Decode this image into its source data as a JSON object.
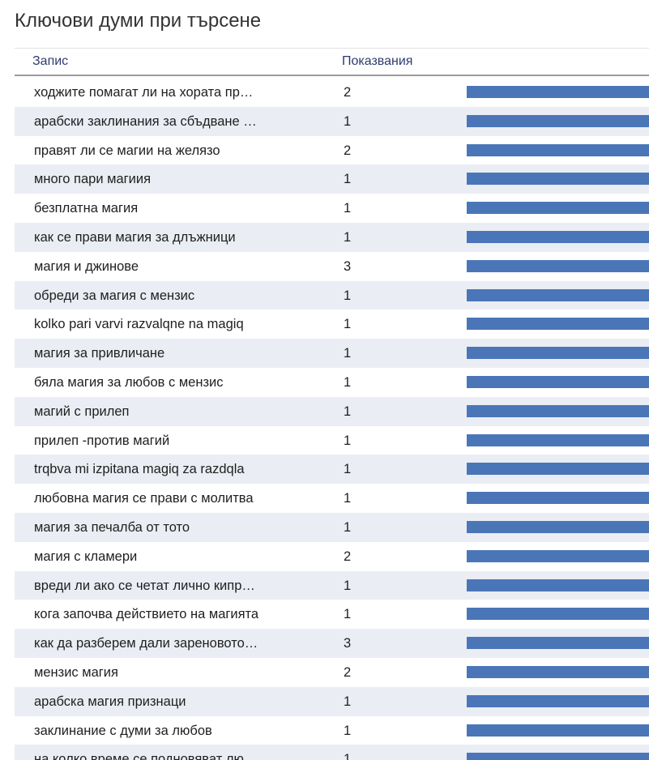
{
  "title": "Ключови думи при търсене",
  "columns": {
    "entry": "Запис",
    "views": "Показвания"
  },
  "colors": {
    "bar": "#4a76b8",
    "alt_row": "#eaedf3"
  },
  "rows": [
    {
      "entry": "ходжите помагат ли на хората пр…",
      "views": "2"
    },
    {
      "entry": "арабски заклинания за сбъдване …",
      "views": "1"
    },
    {
      "entry": "правят ли се магии на желязо",
      "views": "2"
    },
    {
      "entry": "много пари магиия",
      "views": "1"
    },
    {
      "entry": "безплатна магия",
      "views": "1"
    },
    {
      "entry": "как се прави магия за длъжници",
      "views": "1"
    },
    {
      "entry": "магия и джинове",
      "views": "3"
    },
    {
      "entry": "обреди за магия с мензис",
      "views": "1"
    },
    {
      "entry": "kolko pari varvi razvalqne na magiq",
      "views": "1"
    },
    {
      "entry": "магия за привличане",
      "views": "1"
    },
    {
      "entry": "бяла магия за любов с мензис",
      "views": "1"
    },
    {
      "entry": "магий с прилеп",
      "views": "1"
    },
    {
      "entry": "прилеп -против магий",
      "views": "1"
    },
    {
      "entry": "trqbva mi izpitana magiq za razdqla",
      "views": "1"
    },
    {
      "entry": "любовна магия се прави с молитва",
      "views": "1"
    },
    {
      "entry": "магия за печалба от тото",
      "views": "1"
    },
    {
      "entry": "магия с кламери",
      "views": "2"
    },
    {
      "entry": "вреди ли ако се четат лично кипр…",
      "views": "1"
    },
    {
      "entry": "кога започва действието на магията",
      "views": "1"
    },
    {
      "entry": "как да разберем дали зареновото…",
      "views": "3"
    },
    {
      "entry": "мензис магия",
      "views": "2"
    },
    {
      "entry": "арабска магия признаци",
      "views": "1"
    },
    {
      "entry": "заклинание с думи за любов",
      "views": "1"
    },
    {
      "entry": "на колко време се подновяват лю…",
      "views": "1"
    }
  ]
}
